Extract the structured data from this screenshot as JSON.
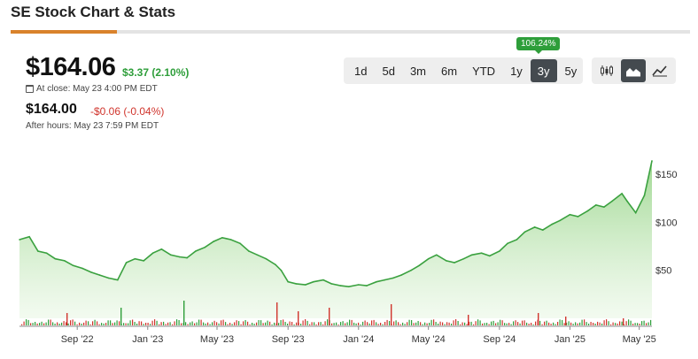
{
  "title": "SE Stock Chart & Stats",
  "quote": {
    "price": "$164.06",
    "change": "$3.37 (2.10%)",
    "close_label": "At close: May 23 4:00 PM EDT",
    "after_price": "$164.00",
    "after_change": "-$0.06 (-0.04%)",
    "after_label": "After hours: May 23 7:59 PM EDT"
  },
  "range": {
    "options": [
      "1d",
      "5d",
      "3m",
      "6m",
      "YTD",
      "1y",
      "3y",
      "5y"
    ],
    "selected": "3y",
    "badge": "106.24%"
  },
  "chart_types": [
    {
      "name": "candlestick-chart-icon",
      "active": false
    },
    {
      "name": "area-chart-icon",
      "active": true
    },
    {
      "name": "line-chart-icon",
      "active": false
    }
  ],
  "colors": {
    "up": "#2e9e3a",
    "down": "#d0342c",
    "accent": "#d9822b",
    "line": "#3aa13f",
    "fill": "#a8dd9c"
  },
  "chart_data": {
    "type": "area",
    "x_ticks": [
      "Sep '22",
      "Jan '23",
      "May '23",
      "Sep '23",
      "Jan '24",
      "May '24",
      "Sep '24",
      "Jan '25",
      "May '25"
    ],
    "y_ticks": [
      "$150",
      "$100",
      "$50"
    ],
    "y_tick_values": [
      150,
      100,
      50
    ],
    "ylim": [
      0,
      175
    ],
    "series": [
      {
        "x": [
          "2022-05-24",
          "2022-06-10",
          "2022-06-25",
          "2022-07-10",
          "2022-07-25",
          "2022-08-10",
          "2022-08-25",
          "2022-09-10",
          "2022-09-25",
          "2022-10-10",
          "2022-10-25",
          "2022-11-10",
          "2022-11-25",
          "2022-12-10",
          "2022-12-25",
          "2023-01-10",
          "2023-01-25",
          "2023-02-10",
          "2023-02-25",
          "2023-03-10",
          "2023-03-25",
          "2023-04-10",
          "2023-04-25",
          "2023-05-10",
          "2023-05-25",
          "2023-06-10",
          "2023-06-25",
          "2023-07-10",
          "2023-07-25",
          "2023-08-10",
          "2023-08-20",
          "2023-09-01",
          "2023-09-15",
          "2023-10-01",
          "2023-10-15",
          "2023-11-01",
          "2023-11-15",
          "2023-12-01",
          "2023-12-15",
          "2024-01-01",
          "2024-01-15",
          "2024-02-01",
          "2024-02-15",
          "2024-03-01",
          "2024-03-15",
          "2024-04-01",
          "2024-04-15",
          "2024-05-01",
          "2024-05-15",
          "2024-06-01",
          "2024-06-15",
          "2024-07-01",
          "2024-07-15",
          "2024-08-01",
          "2024-08-15",
          "2024-09-01",
          "2024-09-15",
          "2024-10-01",
          "2024-10-15",
          "2024-11-01",
          "2024-11-15",
          "2024-12-01",
          "2024-12-15",
          "2025-01-01",
          "2025-01-15",
          "2025-02-01",
          "2025-02-15",
          "2025-03-01",
          "2025-03-15",
          "2025-04-01",
          "2025-04-10",
          "2025-04-25",
          "2025-05-10",
          "2025-05-23"
        ],
        "y": [
          82,
          85,
          70,
          68,
          62,
          60,
          55,
          52,
          48,
          45,
          42,
          40,
          58,
          62,
          60,
          68,
          72,
          66,
          64,
          63,
          70,
          74,
          80,
          84,
          82,
          78,
          70,
          66,
          62,
          56,
          50,
          38,
          36,
          35,
          38,
          40,
          36,
          34,
          33,
          35,
          34,
          38,
          40,
          42,
          45,
          50,
          55,
          62,
          66,
          60,
          58,
          62,
          66,
          68,
          65,
          70,
          78,
          82,
          90,
          95,
          92,
          98,
          102,
          108,
          106,
          112,
          118,
          116,
          122,
          130,
          122,
          110,
          128,
          164
        ]
      }
    ]
  }
}
